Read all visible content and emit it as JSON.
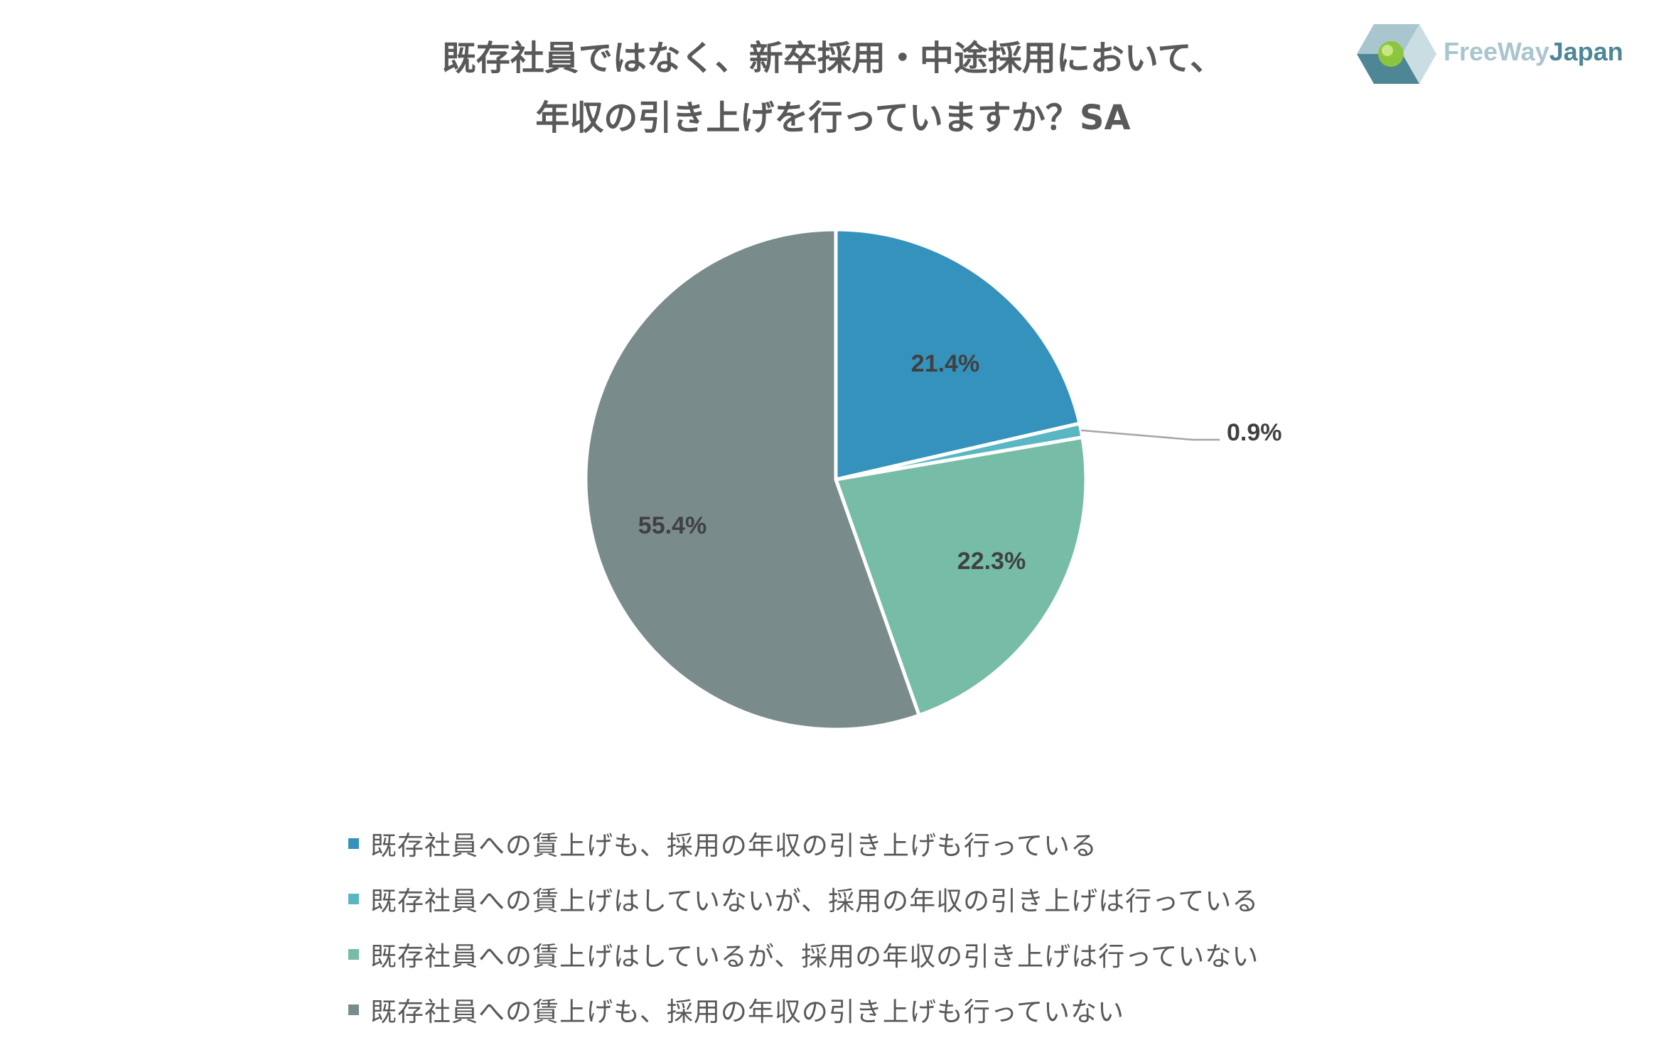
{
  "logo": {
    "text_part1": "FreeWay",
    "text_part2": "Japan"
  },
  "chart_data": {
    "type": "pie",
    "title_lines": [
      "既存社員ではなく、新卒採用・中途採用において、",
      "年収の引き上げを行っていますか？SA"
    ],
    "slices": [
      {
        "label": "既存社員への賃上げも、採用の年収の引き上げも行っている",
        "value": 21.4,
        "value_label": "21.4%",
        "color": "#3592bc"
      },
      {
        "label": "既存社員への賃上げはしていないが、採用の年収の引き上げは行っている",
        "value": 0.9,
        "value_label": "0.9%",
        "color": "#5bb6c4"
      },
      {
        "label": "既存社員への賃上げはしているが、採用の年収の引き上げは行っていない",
        "value": 22.3,
        "value_label": "22.3%",
        "color": "#76bca6"
      },
      {
        "label": "既存社員への賃上げも、採用の年収の引き上げも行っていない",
        "value": 55.4,
        "value_label": "55.4%",
        "color": "#7a8b8c"
      }
    ],
    "start_angle": "12 o'clock",
    "direction": "clockwise",
    "legend_position": "bottom"
  }
}
